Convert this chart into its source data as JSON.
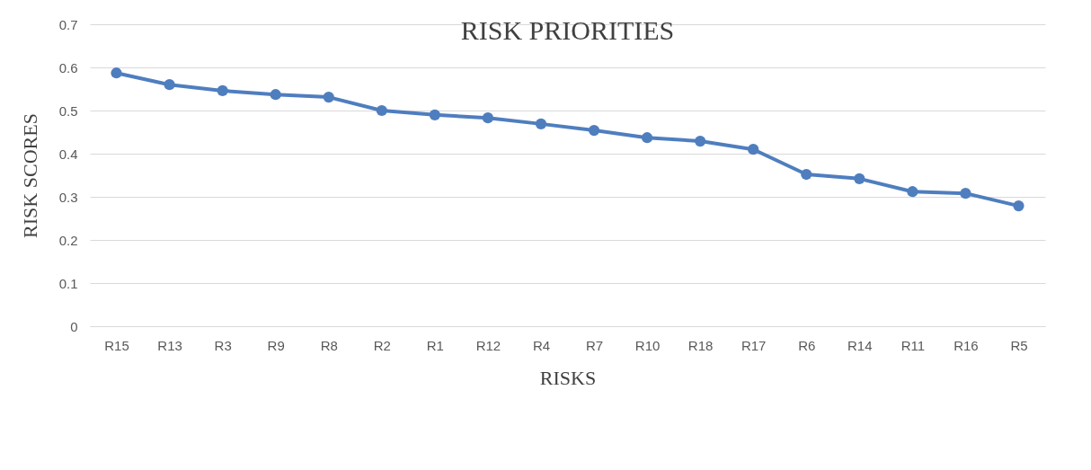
{
  "chart_data": {
    "type": "line",
    "title": "RISK PRIORITIES",
    "xlabel": "RISKS",
    "ylabel": "RISK SCORES",
    "categories": [
      "R15",
      "R13",
      "R3",
      "R9",
      "R8",
      "R2",
      "R1",
      "R12",
      "R4",
      "R7",
      "R10",
      "R18",
      "R17",
      "R6",
      "R14",
      "R11",
      "R16",
      "R5"
    ],
    "series": [
      {
        "color": "#4f7ebf",
        "values": [
          0.587,
          0.56,
          0.546,
          0.537,
          0.531,
          0.5,
          0.49,
          0.483,
          0.469,
          0.454,
          0.437,
          0.429,
          0.41,
          0.352,
          0.342,
          0.312,
          0.308,
          0.279
        ]
      }
    ],
    "ylim": [
      0,
      0.7
    ],
    "yticks": [
      0,
      0.1,
      0.2,
      0.3,
      0.4,
      0.5,
      0.6,
      0.7
    ],
    "grid": "y",
    "legend": false,
    "marker": "circle",
    "line_style": "solid"
  }
}
